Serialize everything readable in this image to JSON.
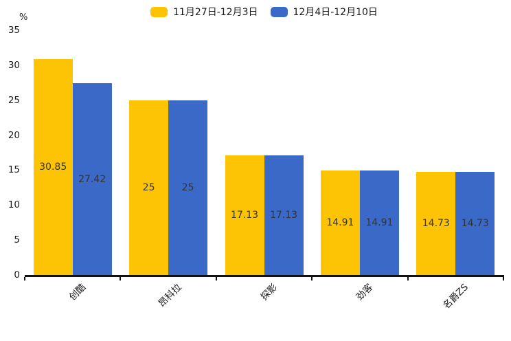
{
  "chart_data": {
    "type": "bar",
    "title": "",
    "unit_label": "%",
    "categories": [
      "创酷",
      "昂科拉",
      "探影",
      "劲客",
      "名爵ZS"
    ],
    "series": [
      {
        "name": "11月27日-12月3日",
        "color": "#FDC405",
        "values": [
          30.85,
          25,
          17.13,
          14.91,
          14.73
        ]
      },
      {
        "name": "12月4日-12月10日",
        "color": "#3B69C8",
        "values": [
          27.42,
          25,
          17.13,
          14.91,
          14.73
        ]
      }
    ],
    "ylim": [
      0,
      35
    ],
    "yticks": [
      0,
      5,
      10,
      15,
      20,
      25,
      30,
      35
    ],
    "grid": false,
    "legend_position": "top-center",
    "value_labels": true,
    "value_label_color": "#333333",
    "axis_color": "#111111",
    "text_color": "#1a1a1a",
    "background": "#ffffff"
  }
}
